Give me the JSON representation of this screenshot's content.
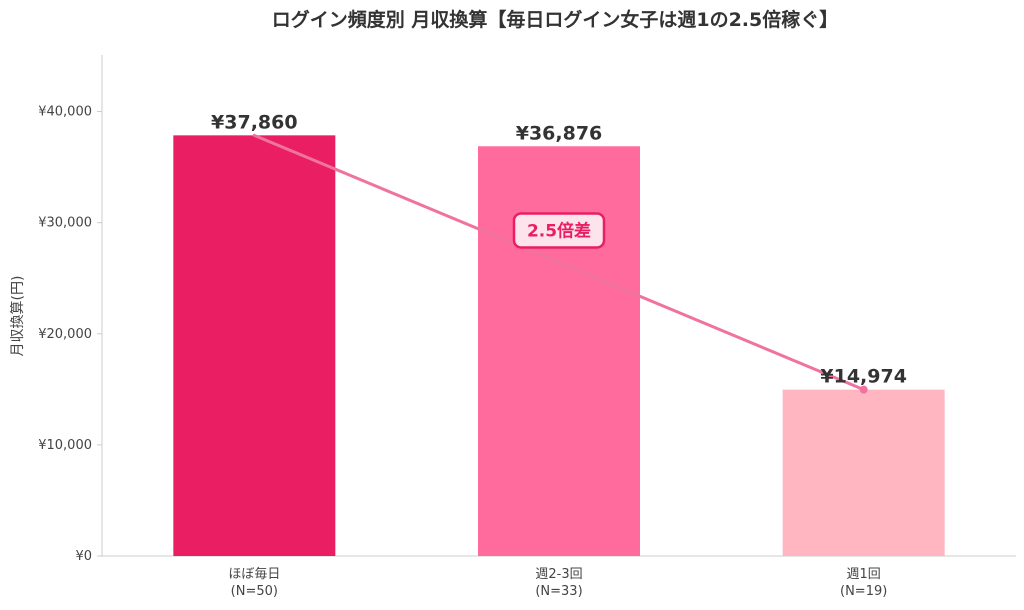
{
  "chart_data": {
    "type": "bar",
    "title": "ログイン頻度別 月収換算【毎日ログイン女子は週1の2.5倍稼ぐ】",
    "ylabel": "月収換算(円)",
    "xlabel": "",
    "ylim": [
      0,
      45000
    ],
    "yticks": [
      0,
      10000,
      20000,
      30000,
      40000
    ],
    "ytick_labels": [
      "¥0",
      "¥10,000",
      "¥20,000",
      "¥30,000",
      "¥40,000"
    ],
    "categories": [
      "ほぼ毎日",
      "週2-3回",
      "週1回"
    ],
    "category_sublabels": [
      "(N=50)",
      "(N=33)",
      "(N=19)"
    ],
    "values": [
      37860,
      36876,
      14974
    ],
    "value_labels": [
      "¥37,860",
      "¥36,876",
      "¥14,974"
    ],
    "bar_colors": [
      "#e91e63",
      "#ff6b9d",
      "#ffb6c1"
    ],
    "trend_line": {
      "from_category": 0,
      "to_category": 2,
      "color": "#f0739f"
    },
    "annotation": {
      "text": "2.5倍差",
      "color": "#e91e63",
      "fill": "#fde4ec"
    },
    "grid": false,
    "legend": "none"
  }
}
